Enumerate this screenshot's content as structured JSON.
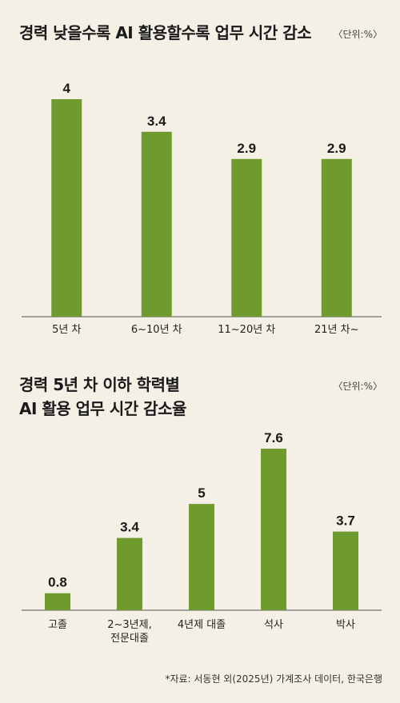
{
  "chart_data": [
    {
      "type": "bar",
      "title": "경력 낮을수록 AI 활용할수록 업무 시간 감소",
      "unit": "〈단위:%〉",
      "categories": [
        "5년 차",
        "6~10년 차",
        "11~20년 차",
        "21년 차~"
      ],
      "values": [
        4,
        3.4,
        2.9,
        2.9
      ],
      "value_labels": [
        "4",
        "3.4",
        "2.9",
        "2.9"
      ],
      "ylim": [
        0,
        4
      ],
      "color": "#6e9a2e",
      "grid": false
    },
    {
      "type": "bar",
      "title_lines": [
        "경력 5년 차 이하 학력별",
        "AI 활용 업무 시간 감소율"
      ],
      "unit": "〈단위:%〉",
      "categories": [
        [
          "고졸"
        ],
        [
          "2~3년제,",
          "전문대졸"
        ],
        [
          "4년제 대졸"
        ],
        [
          "석사"
        ],
        [
          "박사"
        ]
      ],
      "values": [
        0.8,
        3.4,
        5,
        7.6,
        3.7
      ],
      "value_labels": [
        "0.8",
        "3.4",
        "5",
        "7.6",
        "3.7"
      ],
      "ylim": [
        0,
        7.6
      ],
      "color": "#6e9a2e",
      "grid": false
    }
  ],
  "source": "*자료: 서동현 외(2025년) 가계조사 데이터, 한국은행"
}
